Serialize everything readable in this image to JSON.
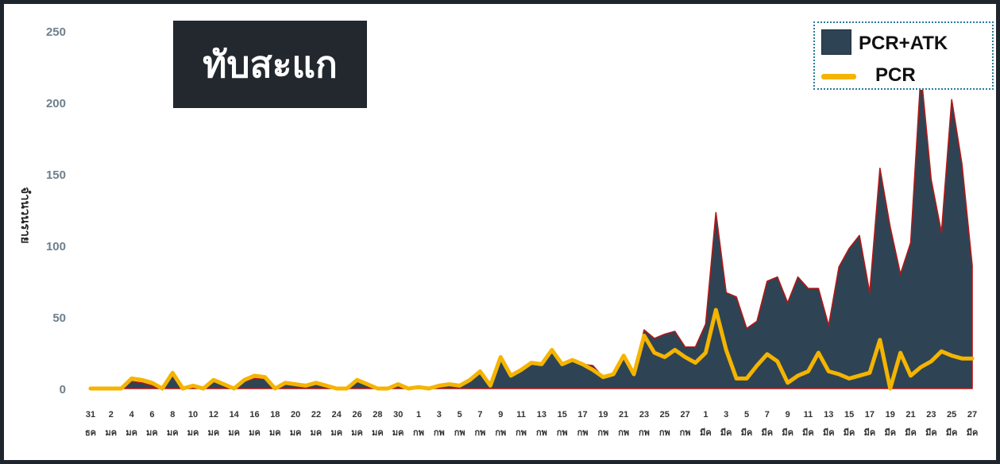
{
  "chart_data": {
    "type": "area",
    "title": "ทับสะแก",
    "ylabel": "จำนวนราย",
    "ylim": [
      0,
      250
    ],
    "yticks": [
      0,
      50,
      100,
      150,
      200,
      250
    ],
    "grid": false,
    "legend_placement": "top-right",
    "categories": [
      "31 ธค",
      "1 มค",
      "2 มค",
      "3 มค",
      "4 มค",
      "5 มค",
      "6 มค",
      "7 มค",
      "8 มค",
      "9 มค",
      "10 มค",
      "11 มค",
      "12 มค",
      "13 มค",
      "14 มค",
      "15 มค",
      "16 มค",
      "17 มค",
      "18 มค",
      "19 มค",
      "20 มค",
      "21 มค",
      "22 มค",
      "23 มค",
      "24 มค",
      "25 มค",
      "26 มค",
      "27 มค",
      "28 มค",
      "29 มค",
      "30 มค",
      "31 มค",
      "1 กพ",
      "2 กพ",
      "3 กพ",
      "4 กพ",
      "5 กพ",
      "6 กพ",
      "7 กพ",
      "8 กพ",
      "9 กพ",
      "10 กพ",
      "11 กพ",
      "12 กพ",
      "13 กพ",
      "14 กพ",
      "15 กพ",
      "16 กพ",
      "17 กพ",
      "18 กพ",
      "19 กพ",
      "20 กพ",
      "21 กพ",
      "22 กพ",
      "23 กพ",
      "24 กพ",
      "25 กพ",
      "26 กพ",
      "27 กพ",
      "28 กพ",
      "1 มีค",
      "2 มีค",
      "3 มีค",
      "4 มีค",
      "5 มีค",
      "6 มีค",
      "7 มีค",
      "8 มีค",
      "9 มีค",
      "10 มีค",
      "11 มีค",
      "12 มีค",
      "13 มีค",
      "14 มีค",
      "15 มีค",
      "16 มีค",
      "17 มีค",
      "18 มีค",
      "19 มีค",
      "20 มีค",
      "21 มีค",
      "22 มีค",
      "23 มีค",
      "24 มีค",
      "25 มีค",
      "26 มีค",
      "27 มีค"
    ],
    "tick_labels": [
      {
        "day": "31",
        "month": "ธค"
      },
      {
        "day": "2",
        "month": "มค"
      },
      {
        "day": "4",
        "month": "มค"
      },
      {
        "day": "6",
        "month": "มค"
      },
      {
        "day": "8",
        "month": "มค"
      },
      {
        "day": "10",
        "month": "มค"
      },
      {
        "day": "12",
        "month": "มค"
      },
      {
        "day": "14",
        "month": "มค"
      },
      {
        "day": "16",
        "month": "มค"
      },
      {
        "day": "18",
        "month": "มค"
      },
      {
        "day": "20",
        "month": "มค"
      },
      {
        "day": "22",
        "month": "มค"
      },
      {
        "day": "24",
        "month": "มค"
      },
      {
        "day": "26",
        "month": "มค"
      },
      {
        "day": "28",
        "month": "มค"
      },
      {
        "day": "30",
        "month": "มค"
      },
      {
        "day": "1",
        "month": "กพ"
      },
      {
        "day": "3",
        "month": "กพ"
      },
      {
        "day": "5",
        "month": "กพ"
      },
      {
        "day": "7",
        "month": "กพ"
      },
      {
        "day": "9",
        "month": "กพ"
      },
      {
        "day": "11",
        "month": "กพ"
      },
      {
        "day": "13",
        "month": "กพ"
      },
      {
        "day": "15",
        "month": "กพ"
      },
      {
        "day": "17",
        "month": "กพ"
      },
      {
        "day": "19",
        "month": "กพ"
      },
      {
        "day": "21",
        "month": "กพ"
      },
      {
        "day": "23",
        "month": "กพ"
      },
      {
        "day": "25",
        "month": "กพ"
      },
      {
        "day": "27",
        "month": "กพ"
      },
      {
        "day": "1",
        "month": "มีค"
      },
      {
        "day": "3",
        "month": "มีค"
      },
      {
        "day": "5",
        "month": "มีค"
      },
      {
        "day": "7",
        "month": "มีค"
      },
      {
        "day": "9",
        "month": "มีค"
      },
      {
        "day": "11",
        "month": "มีค"
      },
      {
        "day": "13",
        "month": "มีค"
      },
      {
        "day": "15",
        "month": "มีค"
      },
      {
        "day": "17",
        "month": "มีค"
      },
      {
        "day": "19",
        "month": "มีค"
      },
      {
        "day": "21",
        "month": "มีค"
      },
      {
        "day": "23",
        "month": "มีค"
      },
      {
        "day": "25",
        "month": "มีค"
      },
      {
        "day": "27",
        "month": "มีค"
      }
    ],
    "series": [
      {
        "name": "PCR+ATK",
        "type": "area",
        "color": "#2e4454",
        "edge_color": "#b01818",
        "values": [
          0,
          0,
          0,
          0,
          5,
          4,
          2,
          0,
          9,
          0,
          2,
          0,
          5,
          2,
          0,
          5,
          7,
          7,
          0,
          3,
          2,
          1,
          3,
          1,
          0,
          0,
          5,
          2,
          0,
          0,
          2,
          0,
          1,
          0,
          2,
          3,
          2,
          6,
          11,
          2,
          21,
          8,
          12,
          17,
          17,
          26,
          17,
          20,
          17,
          16,
          8,
          10,
          22,
          10,
          41,
          35,
          38,
          40,
          29,
          29,
          45,
          123,
          67,
          64,
          42,
          47,
          75,
          78,
          60,
          78,
          70,
          70,
          44,
          85,
          98,
          107,
          67,
          154,
          113,
          80,
          102,
          221,
          146,
          109,
          202,
          157,
          86
        ]
      },
      {
        "name": "PCR",
        "type": "line",
        "color": "#f5b400",
        "values": [
          0,
          0,
          0,
          0,
          7,
          6,
          4,
          0,
          11,
          0,
          2,
          0,
          6,
          3,
          0,
          6,
          9,
          8,
          0,
          4,
          3,
          2,
          4,
          2,
          0,
          0,
          6,
          3,
          0,
          0,
          3,
          0,
          1,
          0,
          2,
          3,
          2,
          6,
          12,
          2,
          22,
          9,
          13,
          18,
          17,
          27,
          17,
          20,
          17,
          13,
          8,
          10,
          23,
          10,
          37,
          25,
          22,
          27,
          22,
          18,
          25,
          55,
          27,
          7,
          7,
          16,
          24,
          19,
          4,
          9,
          12,
          25,
          12,
          10,
          7,
          9,
          11,
          34,
          0,
          25,
          9,
          15,
          19,
          26,
          23,
          21,
          21
        ]
      }
    ]
  }
}
